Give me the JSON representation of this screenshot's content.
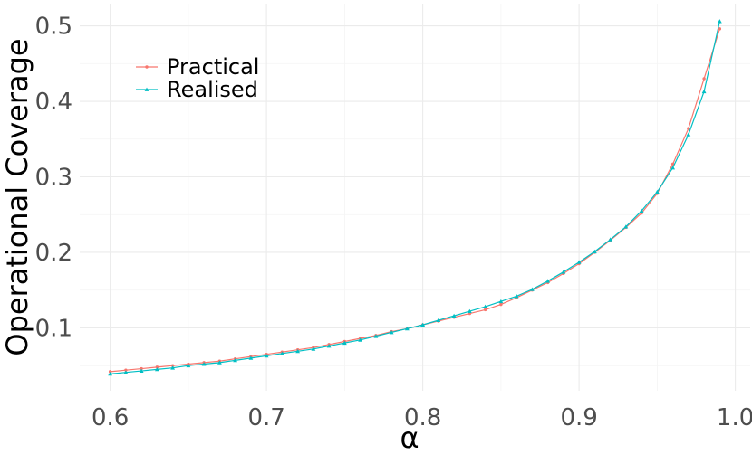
{
  "chart_data": {
    "type": "line",
    "xlabel": "α",
    "ylabel": "Operational Coverage",
    "xlim": [
      0.6,
      0.99
    ],
    "ylim": [
      0.04,
      0.5
    ],
    "x_ticks": [
      "0.6",
      "0.7",
      "0.8",
      "0.9",
      "1.0"
    ],
    "x_tick_values": [
      0.6,
      0.7,
      0.8,
      0.9,
      1.0
    ],
    "y_ticks": [
      "0.1",
      "0.2",
      "0.3",
      "0.4",
      "0.5"
    ],
    "y_tick_values": [
      0.1,
      0.2,
      0.3,
      0.4,
      0.5
    ],
    "grid": true,
    "legend_position": "top-left",
    "x": [
      0.6,
      0.61,
      0.62,
      0.63,
      0.64,
      0.65,
      0.66,
      0.67,
      0.68,
      0.69,
      0.7,
      0.71,
      0.72,
      0.73,
      0.74,
      0.75,
      0.76,
      0.77,
      0.78,
      0.79,
      0.8,
      0.81,
      0.82,
      0.83,
      0.84,
      0.85,
      0.86,
      0.87,
      0.88,
      0.89,
      0.9,
      0.91,
      0.92,
      0.93,
      0.94,
      0.95,
      0.96,
      0.97,
      0.98,
      0.99
    ],
    "series": [
      {
        "name": "Practical",
        "color": "#F8766D",
        "values": [
          0.042,
          0.044,
          0.046,
          0.048,
          0.05,
          0.052,
          0.054,
          0.056,
          0.059,
          0.062,
          0.065,
          0.068,
          0.071,
          0.074,
          0.078,
          0.082,
          0.086,
          0.09,
          0.095,
          0.099,
          0.104,
          0.109,
          0.114,
          0.119,
          0.124,
          0.131,
          0.14,
          0.15,
          0.16,
          0.172,
          0.185,
          0.2,
          0.216,
          0.233,
          0.252,
          0.278,
          0.317,
          0.364,
          0.43,
          0.496
        ]
      },
      {
        "name": "Realised",
        "color": "#00BFC4",
        "values": [
          0.039,
          0.041,
          0.043,
          0.045,
          0.047,
          0.05,
          0.052,
          0.054,
          0.057,
          0.06,
          0.063,
          0.066,
          0.069,
          0.072,
          0.076,
          0.08,
          0.084,
          0.089,
          0.094,
          0.099,
          0.104,
          0.11,
          0.116,
          0.122,
          0.128,
          0.135,
          0.142,
          0.151,
          0.162,
          0.174,
          0.187,
          0.201,
          0.217,
          0.234,
          0.255,
          0.28,
          0.312,
          0.356,
          0.413,
          0.506
        ]
      }
    ]
  }
}
